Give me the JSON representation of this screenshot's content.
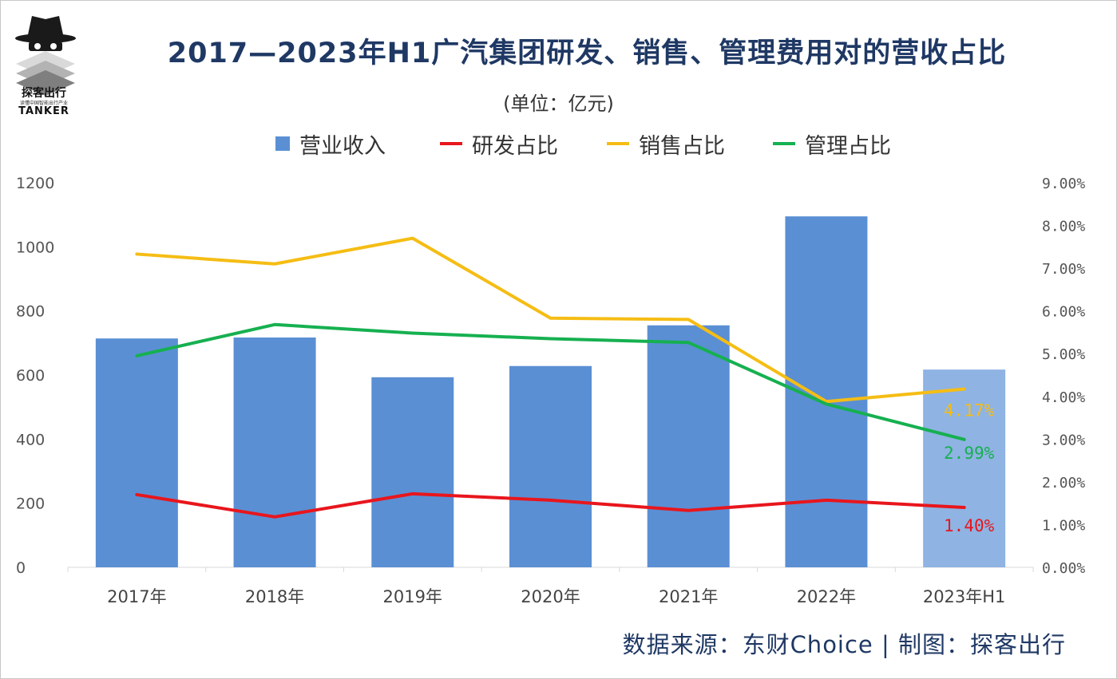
{
  "logo": {
    "cn": "探客出行",
    "tagline": "读懂中国智能出行产业",
    "en": "TANKER"
  },
  "title": "2017—2023年H1广汽集团研发、销售、管理费用对的营收占比",
  "unit": "(单位：亿元)",
  "source": "数据来源：东财Choice  |  制图：探客出行",
  "colors": {
    "revenue": "#5a8fd4",
    "revenue_partial": "#8fb3e3",
    "rd": "#e8161c",
    "sales": "#f5bd14",
    "admin": "#16b050",
    "title": "#1f3864"
  },
  "chart_data": {
    "type": "bar+line",
    "categories": [
      "2017年",
      "2018年",
      "2019年",
      "2020年",
      "2021年",
      "2022年",
      "2023年H1"
    ],
    "left_axis": {
      "ylim": [
        0,
        1200
      ],
      "ticks": [
        "0",
        "200",
        "400",
        "600",
        "800",
        "1000",
        "1200"
      ]
    },
    "right_axis": {
      "ylim": [
        0,
        9
      ],
      "ticks": [
        "0.00%",
        "1.00%",
        "2.00%",
        "3.00%",
        "4.00%",
        "5.00%",
        "6.00%",
        "7.00%",
        "8.00%",
        "9.00%"
      ]
    },
    "legend_position": "top",
    "grid": false,
    "bars": {
      "name": "营业收入",
      "axis": "left",
      "values": [
        714,
        717,
        593,
        628,
        755,
        1095,
        617
      ]
    },
    "lines": [
      {
        "name": "研发占比",
        "axis": "right",
        "values": [
          1.7,
          1.18,
          1.72,
          1.57,
          1.33,
          1.57,
          1.4
        ],
        "end_label": "1.40%",
        "color_key": "rd"
      },
      {
        "name": "销售占比",
        "axis": "right",
        "values": [
          7.33,
          7.1,
          7.7,
          5.83,
          5.8,
          3.88,
          4.17
        ],
        "end_label": "4.17%",
        "color_key": "sales"
      },
      {
        "name": "管理占比",
        "axis": "right",
        "values": [
          4.95,
          5.68,
          5.48,
          5.35,
          5.26,
          3.82,
          2.99
        ],
        "end_label": "2.99%",
        "color_key": "admin"
      }
    ]
  }
}
